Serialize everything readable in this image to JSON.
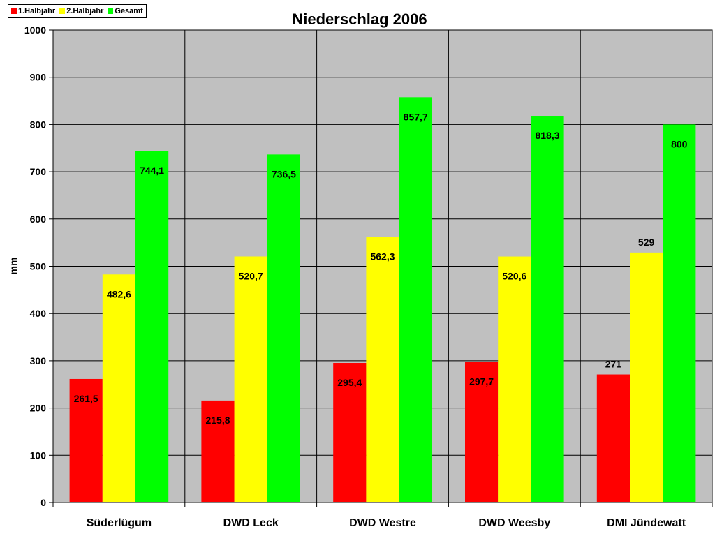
{
  "chart_data": {
    "type": "bar",
    "title": "Niederschlag 2006",
    "ylabel": "mm",
    "xlabel": "",
    "ylim": [
      0,
      1000
    ],
    "yticks": [
      0,
      100,
      200,
      300,
      400,
      500,
      600,
      700,
      800,
      900,
      1000
    ],
    "grid": true,
    "legend_position": "top-left",
    "categories": [
      "Süderlügum",
      "DWD Leck",
      "DWD Westre",
      "DWD Weesby",
      "DMI Jündewatt"
    ],
    "series": [
      {
        "name": "1.Halbjahr",
        "color": "#ff0000",
        "values": [
          261.5,
          215.8,
          295.4,
          297.7,
          271
        ],
        "labels": [
          "261,5",
          "215,8",
          "295,4",
          "297,7",
          "271"
        ]
      },
      {
        "name": "2.Halbjahr",
        "color": "#ffff00",
        "values": [
          482.6,
          520.7,
          562.3,
          520.6,
          529
        ],
        "labels": [
          "482,6",
          "520,7",
          "562,3",
          "520,6",
          "529"
        ]
      },
      {
        "name": "Gesamt",
        "color": "#00ff00",
        "values": [
          744.1,
          736.5,
          857.7,
          818.3,
          800
        ],
        "labels": [
          "744,1",
          "736,5",
          "857,7",
          "818,3",
          "800"
        ]
      }
    ]
  }
}
